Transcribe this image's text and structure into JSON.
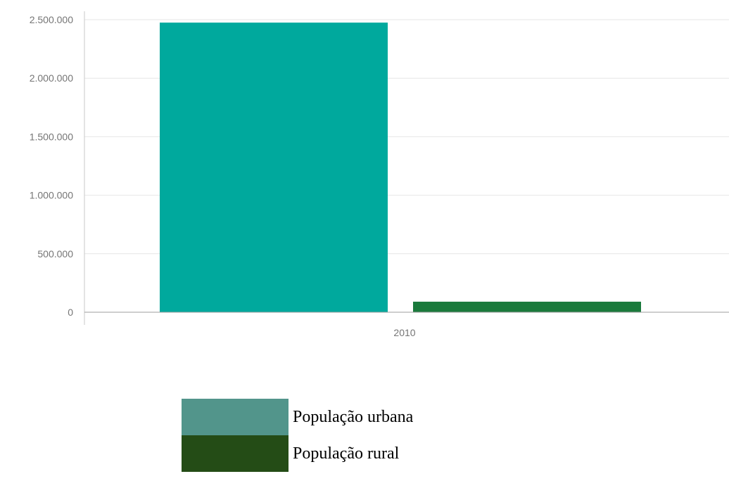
{
  "chart_data": {
    "type": "bar",
    "categories": [
      "2010"
    ],
    "series": [
      {
        "name": "População urbana",
        "values": [
          2475000
        ],
        "color": "#00a99d"
      },
      {
        "name": "População rural",
        "values": [
          90000
        ],
        "color": "#1a7a3c"
      }
    ],
    "y_ticks": [
      "0",
      "500.000",
      "1.000.000",
      "1.500.000",
      "2.000.000",
      "2.500.000"
    ],
    "y_tick_values": [
      0,
      500000,
      1000000,
      1500000,
      2000000,
      2500000
    ],
    "ylim": [
      0,
      2500000
    ],
    "grid": true,
    "legend_position": "bottom"
  },
  "legend": [
    {
      "label": "População urbana",
      "color": "#52958b"
    },
    {
      "label": "População rural",
      "color": "#244c16"
    }
  ]
}
